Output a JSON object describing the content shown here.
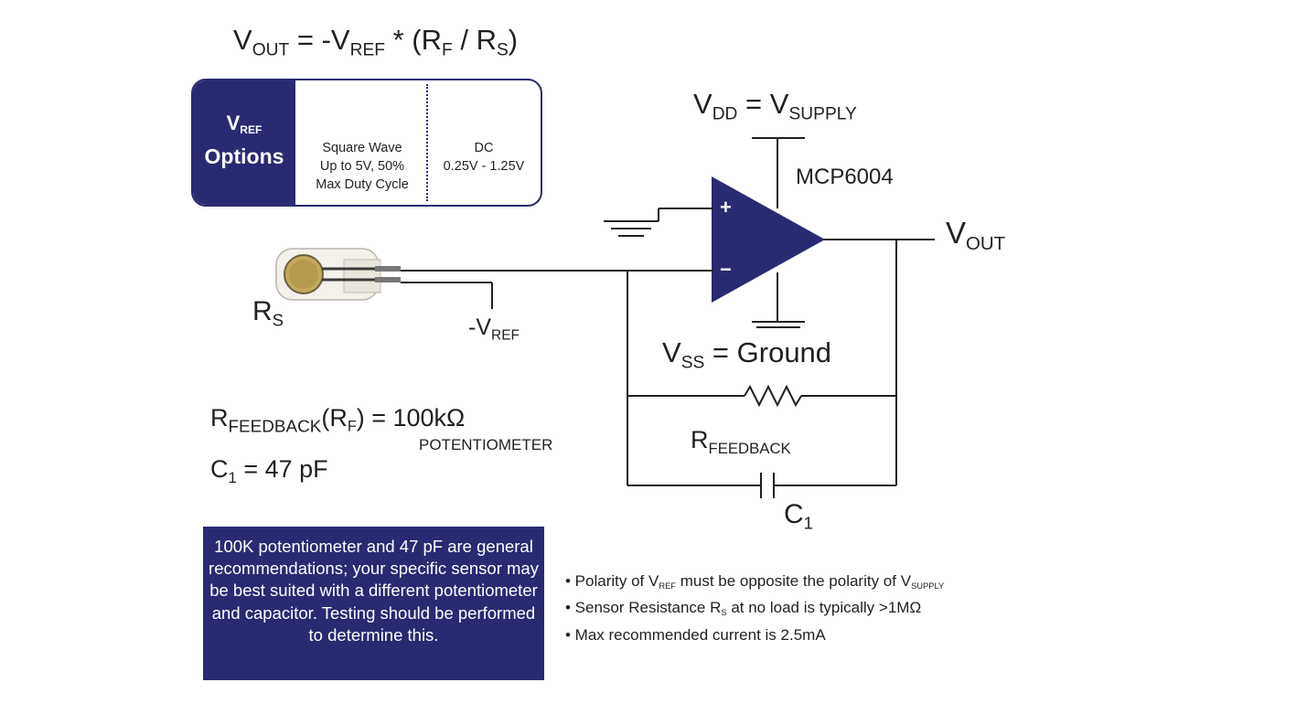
{
  "formula": {
    "v": "V",
    "out": "OUT",
    "eq": " = -V",
    "ref": "REF",
    "mid": " * (R",
    "f": "F",
    "slash": " / R",
    "s": "S",
    "close": ")"
  },
  "vref_options": {
    "label_v": "V",
    "label_ref": "REF",
    "label_options": "Options",
    "square_line1": "Square Wave",
    "square_line2": "Up to 5V, 50%",
    "square_line3": "Max Duty Cycle",
    "dc_line1": "DC",
    "dc_line2": "0.25V - 1.25V"
  },
  "vdd": {
    "v": "V",
    "dd": "DD",
    "eq": " = V",
    "supply": "SUPPLY"
  },
  "chip": "MCP6004",
  "vout": {
    "v": "V",
    "out": "OUT"
  },
  "opamp": {
    "plus": "+",
    "minus": "−"
  },
  "rs": {
    "r": "R",
    "s": "S"
  },
  "neg_vref": {
    "v": "-V",
    "ref": "REF"
  },
  "vss": {
    "v": "V",
    "ss": "SS",
    "eq": " = Ground"
  },
  "rfeedback_label": {
    "r": "R",
    "feedback": "FEEDBACK"
  },
  "c1_label": {
    "c": "C",
    "one": "1"
  },
  "rf_eq": {
    "r": "R",
    "feedback": "FEEDBACK",
    "paren": "(R",
    "f": "F",
    "val": ") = 100kΩ",
    "pot": "POTENTIOMETER"
  },
  "c1_eq": {
    "c": "C",
    "one": "1",
    "val": " = 47 pF"
  },
  "note": "100K potentiometer and 47 pF are general recommendations; your specific sensor may be best suited with a different potentiometer and capacitor. Testing should be performed to determine this.",
  "bullets": {
    "b1_a": "• Polarity of V",
    "b1_ref": "REF",
    "b1_b": " must be opposite the polarity of V",
    "b1_supply": "SUPPLY",
    "b2_a": "• Sensor Resistance R",
    "b2_s": "S",
    "b2_b": " at no load is typically >1MΩ",
    "b3": "• Max recommended current is 2.5mA"
  },
  "colors": {
    "navy": "#2a2a72",
    "line": "#231f20"
  }
}
